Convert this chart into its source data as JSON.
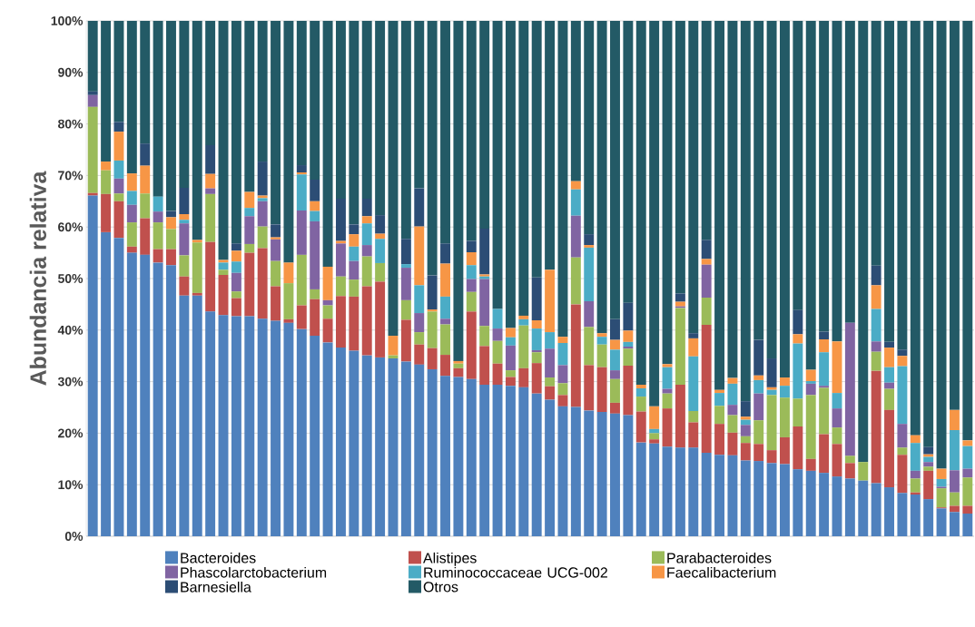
{
  "chart_data": {
    "type": "bar",
    "stacked": true,
    "ylabel": "Abundancia relativa",
    "categories": [
      null,
      null,
      null,
      null,
      null,
      null,
      null,
      null,
      null,
      null,
      null,
      null,
      null,
      null,
      null,
      null,
      null,
      null,
      null,
      null,
      null,
      null,
      null,
      null,
      null,
      null,
      null,
      null,
      null,
      null,
      null,
      null,
      null,
      null,
      null,
      null,
      null,
      null,
      null,
      null,
      null,
      null,
      null,
      null,
      null,
      null,
      null,
      null,
      null,
      null,
      null,
      null,
      null,
      null,
      null,
      null,
      null,
      null,
      null,
      null,
      null,
      null,
      null,
      null,
      null,
      null,
      null,
      null
    ],
    "ylim": [
      0,
      100
    ],
    "yticks": [
      {
        "value": 0,
        "label": "0%"
      },
      {
        "value": 10,
        "label": "10%"
      },
      {
        "value": 20,
        "label": "20%"
      },
      {
        "value": 30,
        "label": "30%"
      },
      {
        "value": 40,
        "label": "40%"
      },
      {
        "value": 50,
        "label": "50%"
      },
      {
        "value": 60,
        "label": "60%"
      },
      {
        "value": 70,
        "label": "70%"
      },
      {
        "value": 80,
        "label": "80%"
      },
      {
        "value": 90,
        "label": "90%"
      },
      {
        "value": 100,
        "label": "100%"
      }
    ],
    "grid": "y",
    "legend": "bottom",
    "tick_labels": "y",
    "series": [
      {
        "name": "Bacteroides",
        "color": "#4f81bd",
        "values": [
          66.1,
          59.0,
          57.9,
          55.0,
          54.6,
          53.1,
          52.6,
          46.7,
          46.7,
          43.6,
          42.9,
          42.7,
          42.7,
          42.2,
          41.8,
          41.4,
          40.2,
          38.9,
          37.6,
          36.6,
          36.0,
          35.1,
          34.7,
          34.5,
          33.9,
          33.3,
          32.4,
          31.1,
          30.9,
          30.5,
          29.4,
          29.4,
          29.2,
          28.9,
          27.7,
          26.5,
          25.2,
          25.1,
          24.4,
          24.1,
          23.8,
          23.5,
          18.2,
          18.0,
          17.4,
          17.2,
          17.2,
          16.2,
          15.8,
          15.7,
          14.7,
          14.6,
          14.2,
          14.0,
          13.0,
          12.7,
          12.3,
          11.6,
          11.2,
          10.8,
          10.3,
          9.5,
          8.4,
          8.1,
          7.2,
          5.4,
          4.7,
          4.4
        ]
      },
      {
        "name": "Alistipes",
        "color": "#c0504d",
        "values": [
          0.5,
          7.4,
          7.1,
          1.2,
          7.1,
          2.6,
          3.1,
          3.7,
          0.5,
          13.5,
          7.8,
          3.5,
          12.3,
          13.7,
          6.7,
          0.7,
          4.6,
          7.1,
          4.6,
          10.0,
          10.5,
          13.4,
          14.7,
          0,
          8.1,
          3.9,
          4.1,
          4.1,
          1.7,
          13.1,
          7.5,
          4.1,
          1.7,
          3.7,
          5.9,
          2.6,
          2.2,
          19.9,
          8.8,
          8.7,
          2.1,
          9.6,
          6.0,
          0.8,
          7.4,
          12.2,
          4.9,
          24.8,
          6.0,
          4.4,
          3.4,
          3.3,
          2.5,
          5.2,
          8.3,
          2.3,
          7.5,
          6.3,
          3.0,
          0,
          21.8,
          15.0,
          7.4,
          0.4,
          5.5,
          0.2,
          1.2,
          1.5
        ]
      },
      {
        "name": "Parabacteroides",
        "color": "#9bbb59",
        "values": [
          16.7,
          4.6,
          1.5,
          4.7,
          4.8,
          5.2,
          3.9,
          4.1,
          9.8,
          9.3,
          1.0,
          1.3,
          1.7,
          4.2,
          4.9,
          7.0,
          9.8,
          1.9,
          2.6,
          3.8,
          3.3,
          5.8,
          3.6,
          0.6,
          3.8,
          2.4,
          7.1,
          5.9,
          0.9,
          3.8,
          3.9,
          4.4,
          1.3,
          8.3,
          2.1,
          1.7,
          2.3,
          9.1,
          7.4,
          4.4,
          4.6,
          3.3,
          2.9,
          1.2,
          2.9,
          14.9,
          2.2,
          5.3,
          3.5,
          3.4,
          1.3,
          4.6,
          10.7,
          7.7,
          5.4,
          12.4,
          9.0,
          3.2,
          1.4,
          3.6,
          3.7,
          4.1,
          1.4,
          2.7,
          0.8,
          3.7,
          2.6,
          5.5
        ]
      },
      {
        "name": "Phascolarctobacterium",
        "color": "#8064a2",
        "values": [
          2.3,
          0,
          2.9,
          3.4,
          0,
          2.1,
          0,
          6.2,
          0,
          1.1,
          0,
          3.6,
          5.4,
          4.9,
          4.2,
          0,
          8.6,
          13.2,
          1.0,
          6.4,
          3.6,
          2.2,
          0,
          0,
          6.3,
          3.7,
          0,
          1.1,
          0,
          2.5,
          9.1,
          2.4,
          4.8,
          0,
          0.4,
          5.6,
          3.5,
          8.1,
          5.0,
          0,
          1.7,
          0.4,
          0,
          0,
          0.9,
          0.3,
          0,
          6.4,
          0,
          2.0,
          2.2,
          5.2,
          0,
          0,
          0,
          2.2,
          0.4,
          3.7,
          25.8,
          0,
          2.0,
          1.2,
          4.6,
          1.5,
          0.9,
          0.3,
          4.3,
          1.7
        ]
      },
      {
        "name": "Ruminococcaceae UCG-002",
        "color": "#4bacc6",
        "values": [
          0,
          0,
          3.5,
          2.7,
          0,
          2.9,
          0,
          0.7,
          0,
          null,
          1.4,
          2.2,
          1.6,
          0.6,
          0,
          0,
          7.0,
          2.0,
          0,
          0,
          2.8,
          4.2,
          4.7,
          0,
          0.7,
          5.4,
          0,
          4.3,
          0,
          2.7,
          0.5,
          3.8,
          1.6,
          1.2,
          4.2,
          3.2,
          4.3,
          5.1,
          10.4,
          1.5,
          4.0,
          0.9,
          1.6,
          0.8,
          4.2,
          0,
          10.6,
          0,
          2.5,
          4.1,
          1.0,
          2.6,
          1.0,
          2.3,
          10.7,
          0.5,
          6.5,
          3.0,
          0,
          0,
          6.3,
          3.0,
          11.2,
          5.4,
          1.0,
          1.5,
          7.8,
          4.4
        ]
      },
      {
        "name": "Faecalibacterium",
        "color": "#f79646",
        "values": [
          0,
          1.7,
          5.6,
          3.4,
          5.4,
          0,
          2.3,
          1.1,
          0.5,
          2.8,
          0.5,
          2.1,
          3.1,
          0.5,
          0.4,
          4.0,
          0.4,
          1.9,
          6.5,
          0.5,
          2.4,
          1.4,
          1.0,
          3.8,
          0,
          11.4,
          0.4,
          6.4,
          0.5,
          2.5,
          0.4,
          0,
          1.8,
          0.7,
          1.6,
          12.1,
          1.2,
          1.6,
          0.5,
          0.7,
          1.9,
          2.2,
          0.7,
          4.4,
          0.6,
          0.9,
          3.5,
          1.1,
          0.6,
          1.1,
          0.6,
          0.9,
          0.5,
          1.6,
          1.8,
          2.2,
          2.5,
          10.0,
          0,
          0,
          4.6,
          3.8,
          2.0,
          1.5,
          0.5,
          2.0,
          3.9,
          1.1
        ]
      },
      {
        "name": "Barnesiella",
        "color": "#2c4d75",
        "values": [
          0.7,
          0,
          1.9,
          0,
          4.3,
          0,
          1.2,
          5.1,
          0,
          5.6,
          0,
          1.4,
          0,
          6.6,
          2.5,
          0,
          1.4,
          4.2,
          0,
          8.2,
          1.9,
          3.4,
          3.6,
          0,
          4.9,
          7.4,
          6.6,
          3.9,
          0,
          2.2,
          8.9,
          0,
          0,
          0,
          8.3,
          0,
          0,
          0,
          2.1,
          0,
          4.0,
          5.4,
          0,
          0,
          0,
          1.6,
          1.0,
          3.7,
          0,
          0,
          3.0,
          6.9,
          5.6,
          0,
          4.7,
          0,
          1.5,
          0,
          0,
          0,
          3.8,
          1.1,
          1.2,
          0,
          1.4,
          0,
          0,
          0
        ]
      },
      {
        "name": "Otros",
        "color": "#235a66",
        "values": [
          13.7,
          27.3,
          19.6,
          29.6,
          23.8,
          34.1,
          36.9,
          32.4,
          42.5,
          24.1,
          46.4,
          43.2,
          33.2,
          27.3,
          39.5,
          46.9,
          28.0,
          30.8,
          47.7,
          34.5,
          39.5,
          34.5,
          37.7,
          61.1,
          42.3,
          32.5,
          49.4,
          43.2,
          66.0,
          42.7,
          40.3,
          55.9,
          59.6,
          57.2,
          49.8,
          48.3,
          61.3,
          31.1,
          41.4,
          60.6,
          57.9,
          54.7,
          70.6,
          74.8,
          66.6,
          52.9,
          60.6,
          42.5,
          71.6,
          69.3,
          73.8,
          61.9,
          65.5,
          69.2,
          56.1,
          67.7,
          60.3,
          62.2,
          58.6,
          85.6,
          47.5,
          62.3,
          63.8,
          80.4,
          82.7,
          86.9,
          75.5,
          81.4
        ]
      }
    ]
  }
}
